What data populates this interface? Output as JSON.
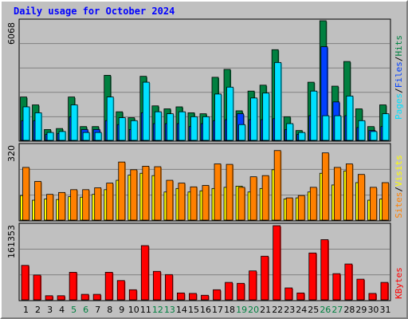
{
  "title": "Daily usage for October 2024",
  "colors": {
    "hits": "#008040",
    "files": "#0040ff",
    "pages": "#00e0ff",
    "visits": "#ffff00",
    "sites": "#ff8000",
    "kbytes": "#ff0000",
    "weekday_label": "#000000",
    "weekend_label": "#008040",
    "background": "#c0c0c0",
    "plot_bg": "#c0c0c0",
    "grid": "#808080"
  },
  "legend": {
    "top": [
      {
        "key": "pages",
        "label": "Pages"
      },
      {
        "key": "files",
        "label": "Files"
      },
      {
        "key": "hits",
        "label": "Hits"
      }
    ],
    "sep": "/",
    "middle": [
      {
        "key": "sites",
        "label": "Sites"
      },
      {
        "key": "visits",
        "label": "Visits"
      }
    ],
    "bottom": [
      {
        "key": "kbytes",
        "label": "KBytes"
      }
    ]
  },
  "chart_data": [
    {
      "type": "bar",
      "title": "Daily usage for October 2024",
      "ymax_label": "6068",
      "ylim": [
        0,
        6068
      ],
      "grid": true,
      "categories": [
        "1",
        "2",
        "3",
        "4",
        "5",
        "6",
        "7",
        "8",
        "9",
        "10",
        "11",
        "12",
        "13",
        "14",
        "15",
        "16",
        "17",
        "18",
        "19",
        "20",
        "21",
        "22",
        "23",
        "24",
        "25",
        "26",
        "27",
        "28",
        "29",
        "30",
        "31"
      ],
      "weekend_days": [
        "5",
        "6",
        "12",
        "13",
        "19",
        "20",
        "26",
        "27"
      ],
      "series": [
        {
          "name": "Hits",
          "key": "hits",
          "values": [
            2200,
            1800,
            550,
            600,
            2200,
            700,
            700,
            3300,
            1450,
            1150,
            3250,
            1750,
            1600,
            1700,
            1400,
            1350,
            3200,
            3600,
            1500,
            2500,
            2800,
            4600,
            1200,
            500,
            2950,
            6068,
            2750,
            4000,
            1600,
            700,
            1800
          ]
        },
        {
          "name": "Files",
          "key": "files",
          "values": [
            1000,
            1000,
            300,
            350,
            1200,
            550,
            550,
            1000,
            800,
            550,
            1400,
            850,
            850,
            850,
            700,
            850,
            1000,
            1050,
            1350,
            1050,
            1050,
            1100,
            550,
            300,
            1250,
            4750,
            1950,
            1250,
            650,
            500,
            700
          ]
        },
        {
          "name": "Pages",
          "key": "pages",
          "values": [
            1700,
            1400,
            400,
            450,
            1800,
            400,
            400,
            2200,
            1150,
            1000,
            2950,
            1450,
            1350,
            1450,
            1200,
            1200,
            2350,
            2700,
            800,
            2150,
            2400,
            3950,
            850,
            400,
            2500,
            1250,
            1250,
            2250,
            1000,
            450,
            1350
          ]
        }
      ]
    },
    {
      "type": "bar",
      "ymax_label": "320",
      "ylim": [
        0,
        320
      ],
      "grid": true,
      "categories": [
        "1",
        "2",
        "3",
        "4",
        "5",
        "6",
        "7",
        "8",
        "9",
        "10",
        "11",
        "12",
        "13",
        "14",
        "15",
        "16",
        "17",
        "18",
        "19",
        "20",
        "21",
        "22",
        "23",
        "24",
        "25",
        "26",
        "27",
        "28",
        "29",
        "30",
        "31"
      ],
      "series": [
        {
          "name": "Visits",
          "key": "visits",
          "values": [
            105,
            85,
            90,
            88,
            100,
            98,
            110,
            130,
            170,
            192,
            200,
            190,
            120,
            135,
            120,
            125,
            135,
            140,
            145,
            120,
            135,
            215,
            90,
            95,
            120,
            200,
            150,
            210,
            160,
            85,
            90
          ]
        },
        {
          "name": "Sites",
          "key": "sites",
          "values": [
            225,
            165,
            110,
            118,
            130,
            130,
            138,
            158,
            248,
            215,
            230,
            228,
            170,
            158,
            142,
            148,
            240,
            238,
            140,
            185,
            190,
            297,
            95,
            105,
            140,
            287,
            225,
            240,
            195,
            140,
            160
          ]
        }
      ]
    },
    {
      "type": "bar",
      "ymax_label": "161353",
      "ylim": [
        0,
        161353
      ],
      "grid": true,
      "categories": [
        "1",
        "2",
        "3",
        "4",
        "5",
        "6",
        "7",
        "8",
        "9",
        "10",
        "11",
        "12",
        "13",
        "14",
        "15",
        "16",
        "17",
        "18",
        "19",
        "20",
        "21",
        "22",
        "23",
        "24",
        "25",
        "26",
        "27",
        "28",
        "29",
        "30",
        "31"
      ],
      "series": [
        {
          "name": "KBytes",
          "key": "kbytes",
          "values": [
            75000,
            54000,
            9000,
            9000,
            60000,
            12000,
            12000,
            60000,
            42000,
            22000,
            118000,
            62000,
            55000,
            15000,
            14000,
            10000,
            22000,
            38000,
            36000,
            63000,
            95000,
            161353,
            26000,
            15000,
            102000,
            131000,
            57000,
            78000,
            45000,
            14000,
            38000
          ]
        }
      ]
    }
  ]
}
